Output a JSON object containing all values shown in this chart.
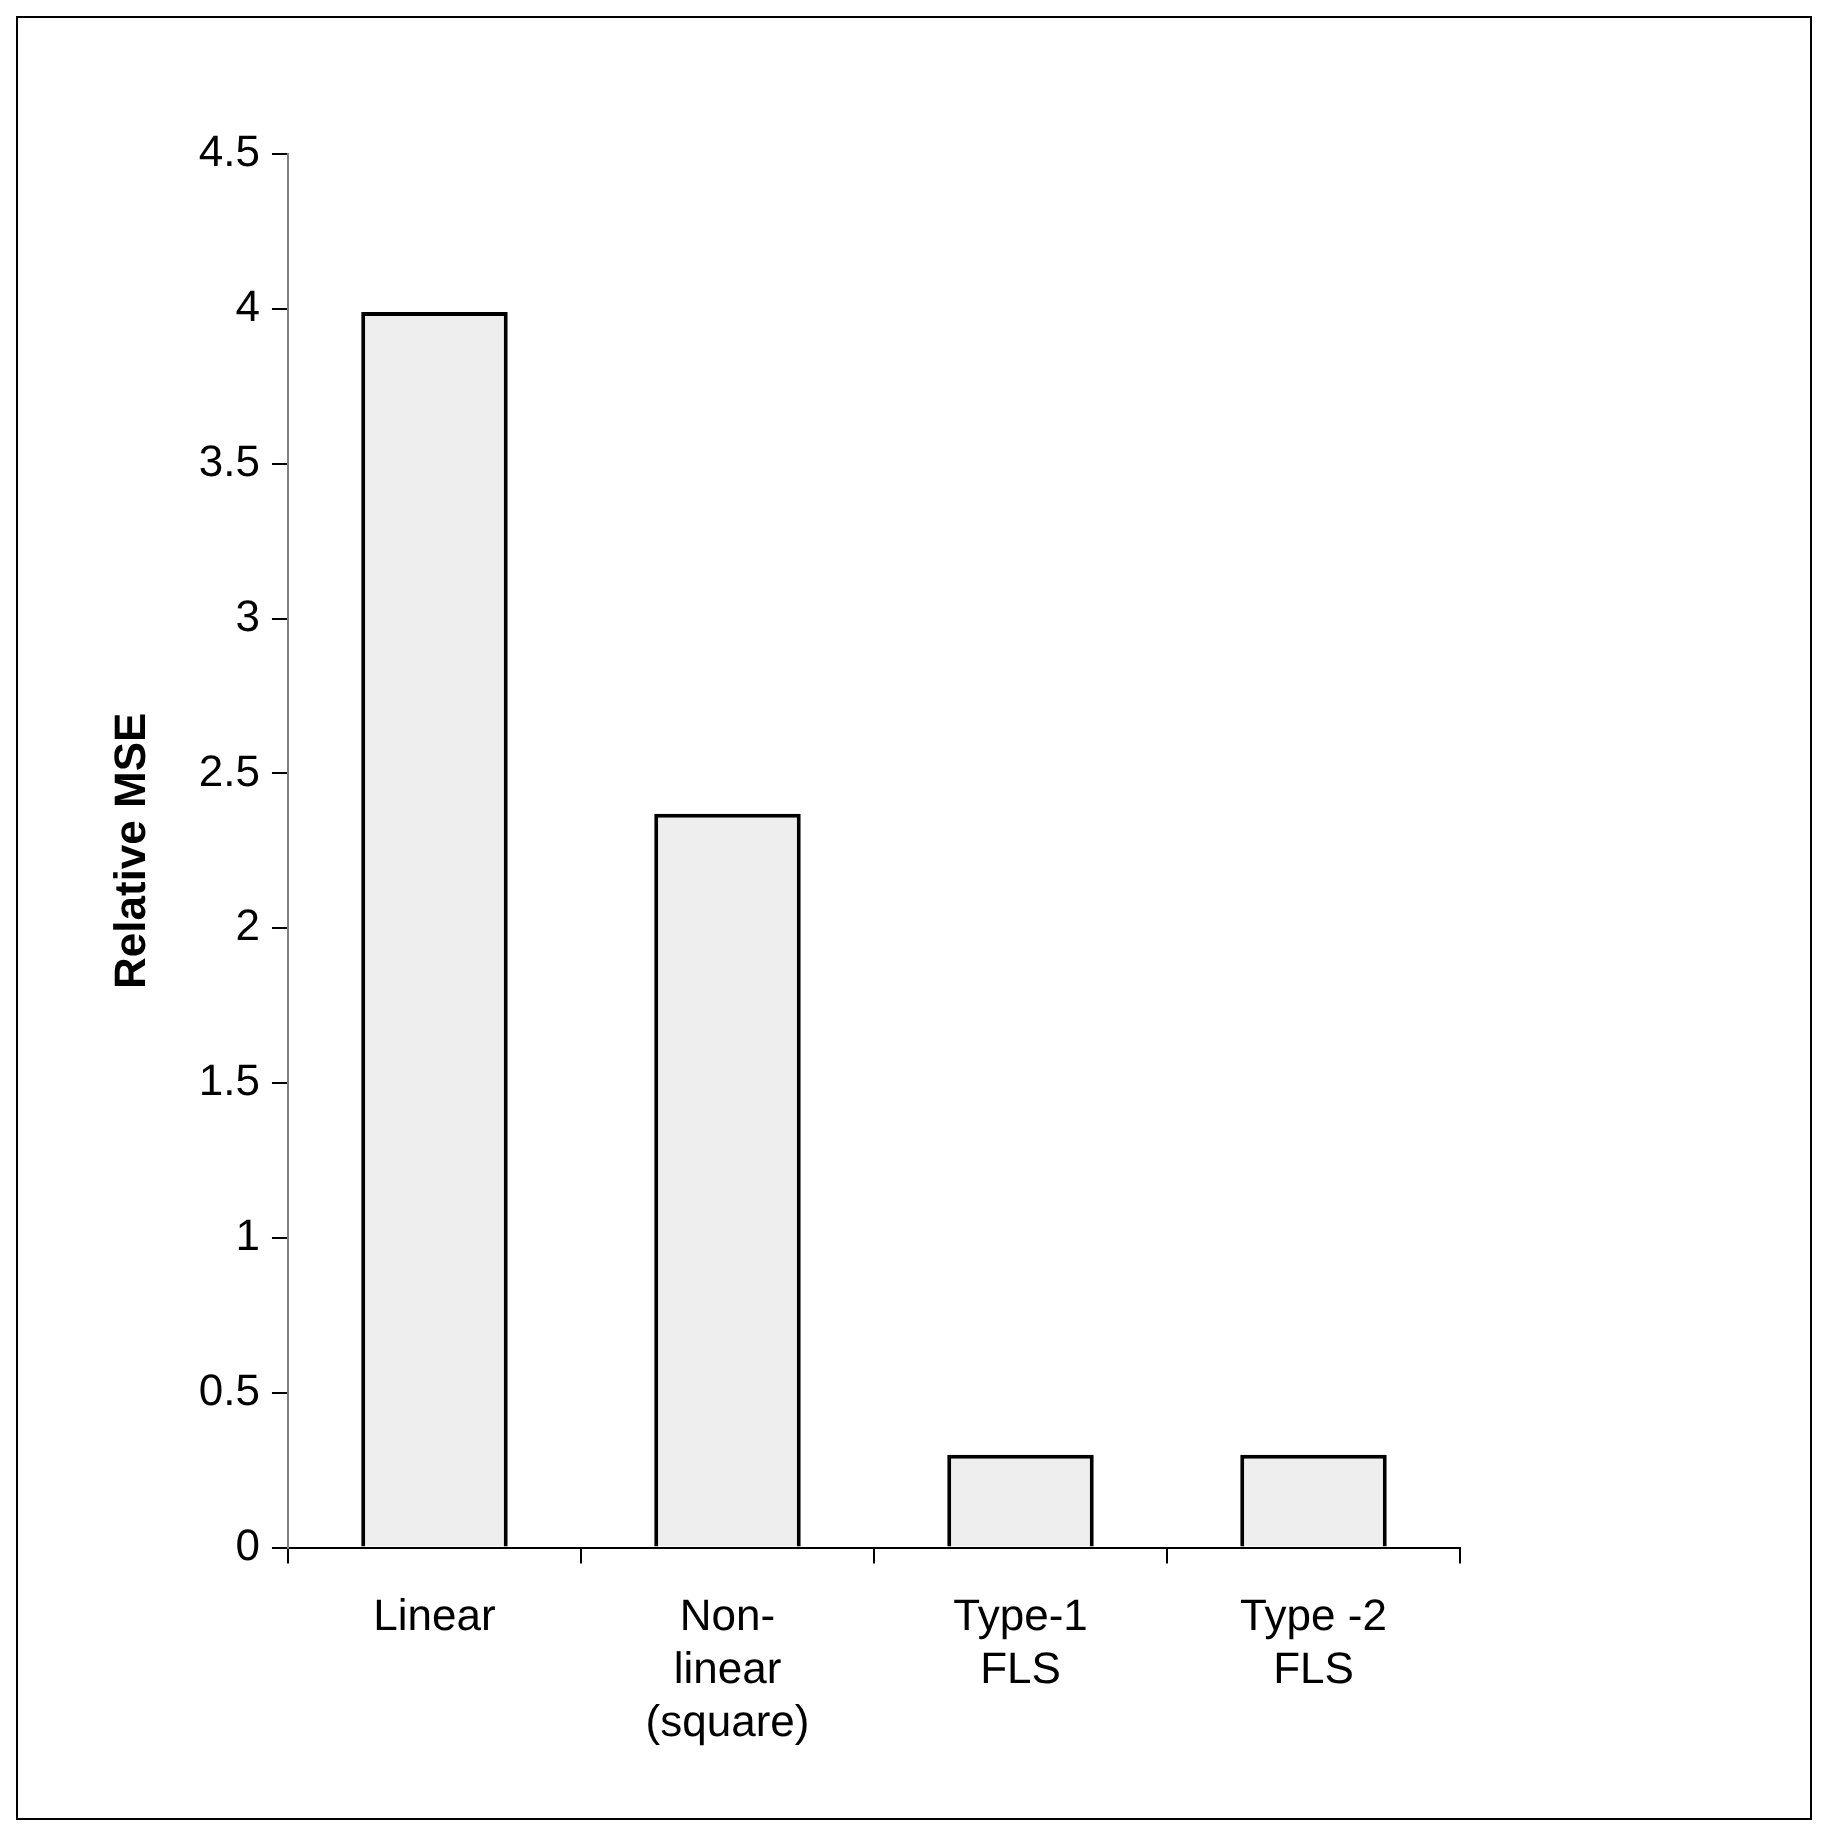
{
  "chart_data": {
    "type": "bar",
    "ylabel": "Relative MSE",
    "categories": [
      "Linear",
      "Non-linear (square)",
      "Type-1 FLS",
      "Type -2 FLS"
    ],
    "values": [
      3.99,
      2.37,
      0.3,
      0.3
    ],
    "color": "#eeeeee",
    "ylim": [
      0,
      4.5
    ],
    "yticks": [
      0,
      0.5,
      1,
      1.5,
      2,
      2.5,
      3,
      3.5,
      4,
      4.5
    ],
    "grid": false,
    "legend": false
  }
}
